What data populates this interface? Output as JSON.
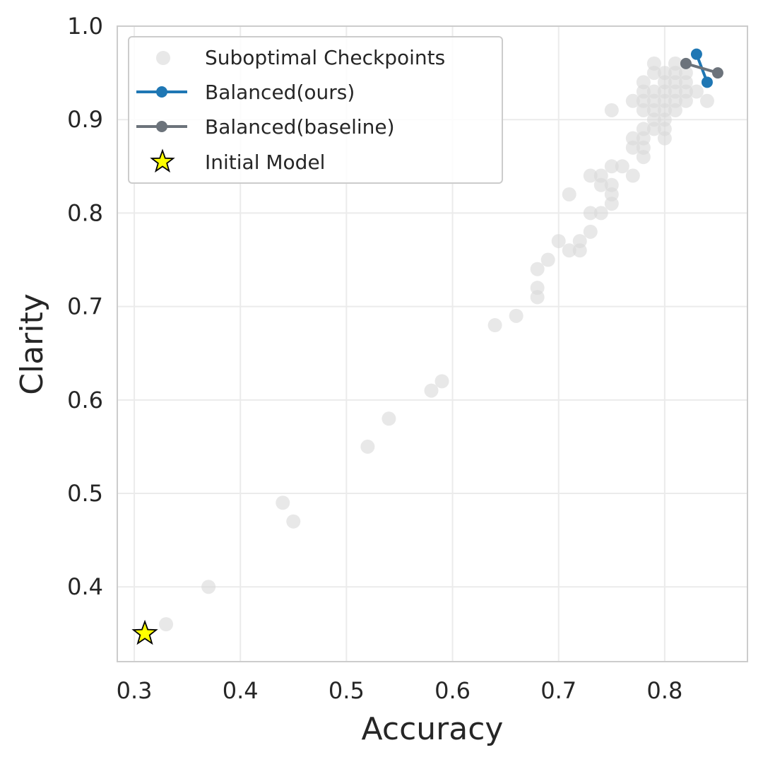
{
  "chart_data": {
    "type": "scatter",
    "xlabel": "Accuracy",
    "ylabel": "Clarity",
    "xlim": [
      0.284,
      0.878
    ],
    "ylim": [
      0.32,
      1.0
    ],
    "xticks": [
      0.3,
      0.4,
      0.5,
      0.6,
      0.7,
      0.8
    ],
    "xtick_labels": [
      "0.3",
      "0.4",
      "0.5",
      "0.6",
      "0.7",
      "0.8"
    ],
    "yticks": [
      0.4,
      0.5,
      0.6,
      0.7,
      0.8,
      0.9,
      1.0
    ],
    "ytick_labels": [
      "0.4",
      "0.5",
      "0.6",
      "0.7",
      "0.8",
      "0.9",
      "1.0"
    ],
    "grid": true,
    "legend_position": "top-left",
    "colors": {
      "suboptimal": "#d9d9d9",
      "ours": "#1f77b4",
      "baseline": "#6c737b",
      "initial": "#ffff00",
      "grid": "#ebebeb",
      "frame": "#cccccc"
    },
    "series": [
      {
        "name": "Suboptimal Checkpoints",
        "kind": "scatter",
        "points": [
          [
            0.33,
            0.36
          ],
          [
            0.37,
            0.4
          ],
          [
            0.44,
            0.49
          ],
          [
            0.45,
            0.47
          ],
          [
            0.52,
            0.55
          ],
          [
            0.54,
            0.58
          ],
          [
            0.58,
            0.61
          ],
          [
            0.59,
            0.62
          ],
          [
            0.64,
            0.68
          ],
          [
            0.66,
            0.69
          ],
          [
            0.68,
            0.71
          ],
          [
            0.68,
            0.72
          ],
          [
            0.68,
            0.74
          ],
          [
            0.69,
            0.75
          ],
          [
            0.7,
            0.77
          ],
          [
            0.71,
            0.76
          ],
          [
            0.71,
            0.82
          ],
          [
            0.72,
            0.76
          ],
          [
            0.72,
            0.77
          ],
          [
            0.73,
            0.78
          ],
          [
            0.73,
            0.8
          ],
          [
            0.73,
            0.84
          ],
          [
            0.74,
            0.8
          ],
          [
            0.74,
            0.83
          ],
          [
            0.74,
            0.84
          ],
          [
            0.75,
            0.81
          ],
          [
            0.75,
            0.82
          ],
          [
            0.75,
            0.83
          ],
          [
            0.75,
            0.85
          ],
          [
            0.75,
            0.91
          ],
          [
            0.76,
            0.85
          ],
          [
            0.77,
            0.84
          ],
          [
            0.77,
            0.87
          ],
          [
            0.77,
            0.88
          ],
          [
            0.77,
            0.92
          ],
          [
            0.78,
            0.86
          ],
          [
            0.78,
            0.87
          ],
          [
            0.78,
            0.88
          ],
          [
            0.78,
            0.89
          ],
          [
            0.78,
            0.91
          ],
          [
            0.78,
            0.92
          ],
          [
            0.78,
            0.93
          ],
          [
            0.78,
            0.94
          ],
          [
            0.79,
            0.89
          ],
          [
            0.79,
            0.9
          ],
          [
            0.79,
            0.91
          ],
          [
            0.79,
            0.92
          ],
          [
            0.79,
            0.93
          ],
          [
            0.79,
            0.95
          ],
          [
            0.79,
            0.96
          ],
          [
            0.8,
            0.88
          ],
          [
            0.8,
            0.89
          ],
          [
            0.8,
            0.9
          ],
          [
            0.8,
            0.91
          ],
          [
            0.8,
            0.92
          ],
          [
            0.8,
            0.93
          ],
          [
            0.8,
            0.94
          ],
          [
            0.8,
            0.95
          ],
          [
            0.81,
            0.91
          ],
          [
            0.81,
            0.92
          ],
          [
            0.81,
            0.93
          ],
          [
            0.81,
            0.94
          ],
          [
            0.81,
            0.95
          ],
          [
            0.81,
            0.96
          ],
          [
            0.82,
            0.92
          ],
          [
            0.82,
            0.93
          ],
          [
            0.82,
            0.94
          ],
          [
            0.82,
            0.95
          ],
          [
            0.83,
            0.93
          ],
          [
            0.84,
            0.92
          ]
        ]
      },
      {
        "name": "Balanced(ours)",
        "kind": "line",
        "points": [
          [
            0.83,
            0.97
          ],
          [
            0.84,
            0.94
          ]
        ]
      },
      {
        "name": "Balanced(baseline)",
        "kind": "line",
        "points": [
          [
            0.82,
            0.96
          ],
          [
            0.85,
            0.95
          ]
        ]
      },
      {
        "name": "Initial Model",
        "kind": "star",
        "points": [
          [
            0.31,
            0.35
          ]
        ]
      }
    ],
    "legend": [
      "Suboptimal Checkpoints",
      "Balanced(ours)",
      "Balanced(baseline)",
      "Initial Model"
    ]
  }
}
